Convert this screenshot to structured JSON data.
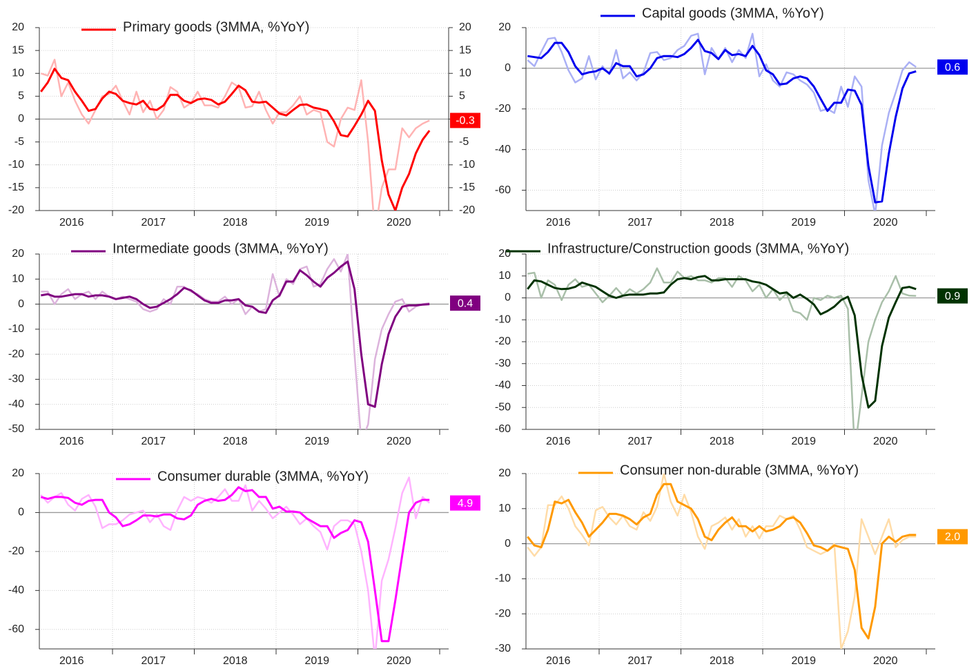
{
  "chart_data": [
    {
      "type": "line",
      "categories": [
        null,
        null,
        null,
        null,
        null,
        "2016",
        null,
        null,
        null,
        null,
        null,
        null,
        null,
        null,
        null,
        null,
        null,
        "2017",
        null,
        null,
        null,
        null,
        null,
        null,
        null,
        null,
        null,
        null,
        null,
        "2018",
        null,
        null,
        null,
        null,
        null,
        null,
        null,
        null,
        null,
        null,
        null,
        "2019",
        null,
        null,
        null,
        null,
        null,
        null,
        null,
        null,
        null,
        null,
        null,
        "2020",
        null,
        null,
        null,
        null
      ],
      "series": [
        {
          "color": "#ffb3b3",
          "values": [
            10,
            9.5,
            13,
            5,
            8,
            4,
            1,
            -1,
            2,
            5,
            5.5,
            7.3,
            4,
            1,
            6,
            1.5,
            4,
            0,
            2,
            7,
            6,
            2.5,
            3.5,
            6,
            3,
            3,
            2.5,
            5,
            8,
            7,
            2.5,
            2.8,
            6,
            2,
            -1,
            1.5,
            1.5,
            3,
            5,
            1,
            2,
            1.5,
            -5,
            -6,
            0,
            2.5,
            2,
            8.5,
            -5,
            -25,
            -15,
            -11,
            -11,
            -2,
            -4,
            -2,
            -1,
            -0.3
          ]
        },
        {
          "name": "Primary goods (3MMA, %YoY)",
          "color": "#ff0000",
          "values": [
            6,
            8,
            11,
            9,
            8.5,
            6,
            4,
            1.8,
            2.2,
            4.5,
            6,
            5.5,
            4,
            3.5,
            3.2,
            4,
            2.2,
            2,
            3,
            5.3,
            5.3,
            4,
            3.5,
            4.3,
            4.5,
            4.2,
            3.2,
            3.8,
            5.5,
            7.3,
            6.3,
            3.8,
            3.6,
            3.8,
            2.5,
            1.2,
            0.8,
            2,
            3.1,
            3.2,
            2.5,
            2.2,
            1.8,
            -0.5,
            -3.5,
            -3.8,
            -1.5,
            1,
            4,
            1.8,
            -9,
            -16.5,
            -20,
            -15,
            -12,
            -7.5,
            -4.5,
            -2.5
          ]
        }
      ],
      "end_label": -0.3,
      "ylim": [
        -20,
        20
      ],
      "yticks": [
        20,
        15,
        10,
        5,
        0,
        -5,
        -10,
        -15,
        -20
      ],
      "y2lim": [
        -20,
        20
      ],
      "y2ticks": [
        20,
        15,
        10,
        5,
        0,
        -5,
        -10,
        -15,
        -20
      ],
      "grid": true
    },
    {
      "type": "line",
      "categories": [
        null,
        null,
        null,
        null,
        null,
        "2016",
        null,
        null,
        null,
        null,
        null,
        null,
        null,
        null,
        null,
        null,
        null,
        "2017",
        null,
        null,
        null,
        null,
        null,
        null,
        null,
        null,
        null,
        null,
        null,
        "2018",
        null,
        null,
        null,
        null,
        null,
        null,
        null,
        null,
        null,
        null,
        null,
        "2019",
        null,
        null,
        null,
        null,
        null,
        null,
        null,
        null,
        null,
        null,
        null,
        "2020",
        null,
        null,
        null,
        null
      ],
      "series": [
        {
          "color": "#aab0f5",
          "values": [
            4,
            1,
            8,
            14.5,
            15,
            8,
            -1,
            -7,
            -5,
            6,
            -5.5,
            1,
            -3,
            9,
            -5,
            -2,
            -6,
            -2,
            7.5,
            8,
            4,
            5,
            9,
            11,
            16,
            17,
            -3,
            10,
            4.5,
            10,
            3,
            9,
            5,
            17,
            -4,
            2,
            -6,
            -9,
            -2,
            -3,
            -6,
            -8,
            -12,
            -21,
            -20,
            -22,
            -9,
            -19,
            -4,
            -9,
            -55,
            -72,
            -38,
            -22,
            -12,
            -1,
            3,
            0.6
          ]
        },
        {
          "name": "Capital goods (3MMA, %YoY)",
          "color": "#0000ee",
          "values": [
            6,
            5.5,
            5,
            8,
            12.5,
            12.5,
            8,
            1,
            -3,
            -2,
            -1.5,
            0,
            -2.5,
            2.5,
            1,
            1,
            -4,
            -3,
            0,
            5,
            6,
            6,
            5.5,
            7,
            10,
            14,
            8.5,
            7.5,
            4.5,
            9,
            6.5,
            7,
            6,
            11,
            6.5,
            -1,
            -3,
            -8,
            -7.5,
            -5,
            -4,
            -5,
            -9,
            -15,
            -21,
            -17,
            -17,
            -10.5,
            -11,
            -18,
            -48,
            -66,
            -65.5,
            -42,
            -24,
            -10,
            -2.5,
            -1.5
          ]
        }
      ],
      "end_label": 0.6,
      "ylim": [
        -70,
        20
      ],
      "yticks": [
        20,
        0,
        -20,
        -40,
        -60
      ],
      "grid": true
    },
    {
      "type": "line",
      "categories": [
        null,
        null,
        null,
        null,
        null,
        "2016",
        null,
        null,
        null,
        null,
        null,
        null,
        null,
        null,
        null,
        null,
        null,
        "2017",
        null,
        null,
        null,
        null,
        null,
        null,
        null,
        null,
        null,
        null,
        null,
        "2018",
        null,
        null,
        null,
        null,
        null,
        null,
        null,
        null,
        null,
        null,
        null,
        "2019",
        null,
        null,
        null,
        null,
        null,
        null,
        null,
        null,
        null,
        null,
        null,
        "2020",
        null,
        null,
        null,
        null
      ],
      "series": [
        {
          "color": "#dcb3dc",
          "values": [
            5,
            5,
            0,
            4,
            6,
            2,
            4,
            5,
            2,
            5,
            3,
            2,
            3,
            2,
            1,
            -2,
            -3,
            -2,
            2,
            0,
            7,
            7,
            5,
            4,
            2,
            1,
            1,
            3,
            0,
            2,
            -4,
            -1,
            -3,
            -2,
            12,
            3,
            10,
            8,
            14,
            15,
            7,
            8,
            14,
            18,
            13,
            20,
            -20,
            -55,
            -48,
            -22,
            -10,
            -4,
            1,
            2,
            -3,
            -1,
            0,
            0.4
          ]
        },
        {
          "name": "Intermediate goods (3MMA, %YoY)",
          "color": "#800080",
          "values": [
            3.5,
            4,
            3,
            3,
            3.5,
            4,
            4,
            3,
            3.5,
            3.5,
            3,
            2,
            2.5,
            3,
            2,
            0,
            -1.5,
            -1,
            0.5,
            2,
            4,
            6.5,
            5.5,
            3.5,
            1.5,
            0.5,
            0.5,
            1.5,
            1.5,
            2,
            -0.5,
            -1,
            -3,
            -3.5,
            1.5,
            3.5,
            9,
            9,
            13.5,
            11.5,
            9,
            7,
            10.5,
            12.5,
            15,
            17,
            6,
            -20,
            -40,
            -41,
            -24,
            -12,
            -5,
            -1,
            -0.5,
            -0.5,
            -0.2,
            0
          ]
        }
      ],
      "end_label": 0.4,
      "ylim": [
        -50,
        20
      ],
      "yticks": [
        20,
        10,
        0,
        -10,
        -20,
        -30,
        -40,
        -50
      ],
      "grid": true
    },
    {
      "type": "line",
      "categories": [
        null,
        null,
        null,
        null,
        null,
        "2016",
        null,
        null,
        null,
        null,
        null,
        null,
        null,
        null,
        null,
        null,
        null,
        "2017",
        null,
        null,
        null,
        null,
        null,
        null,
        null,
        null,
        null,
        null,
        null,
        "2018",
        null,
        null,
        null,
        null,
        null,
        null,
        null,
        null,
        null,
        null,
        null,
        "2019",
        null,
        null,
        null,
        null,
        null,
        null,
        null,
        null,
        null,
        null,
        null,
        "2020",
        null,
        null,
        null,
        null
      ],
      "series": [
        {
          "color": "#a9bfa9",
          "values": [
            11,
            11.5,
            0,
            8,
            6,
            -1,
            6,
            8.5,
            5,
            6,
            2,
            -2,
            1,
            4.5,
            1,
            4,
            2,
            4,
            7,
            13.5,
            7,
            7,
            12,
            9,
            10,
            8,
            8,
            7,
            9,
            9,
            5,
            10,
            8,
            3,
            6,
            0,
            4,
            -1,
            2,
            -6,
            -7,
            -10,
            0,
            -1,
            1,
            0,
            1,
            -5,
            -70,
            -45,
            -20,
            -10,
            -2,
            3,
            10,
            2,
            1,
            0.9
          ]
        },
        {
          "name": "Infrastructure/Construction goods (3MMA, %YoY)",
          "color": "#003300",
          "values": [
            4,
            8,
            7.5,
            6,
            4.5,
            4,
            4.2,
            5,
            7,
            6,
            5,
            3,
            1,
            0,
            1,
            1.5,
            1.5,
            1.5,
            2,
            2,
            2.5,
            6,
            8.5,
            9,
            8.5,
            9.5,
            10,
            8,
            8,
            8.5,
            8.5,
            8.5,
            8.5,
            7.5,
            7,
            6,
            4,
            2,
            2.5,
            0,
            1.5,
            -0.5,
            -3,
            -7.5,
            -6,
            -4,
            -1,
            0.5,
            -8,
            -35,
            -50,
            -47,
            -22,
            -9,
            -2,
            4.5,
            5,
            4
          ]
        }
      ],
      "end_label": 0.9,
      "ylim": [
        -60,
        20
      ],
      "yticks": [
        20,
        10,
        0,
        -10,
        -20,
        -30,
        -40,
        -50,
        -60
      ],
      "grid": true
    },
    {
      "type": "line",
      "categories": [
        null,
        null,
        null,
        null,
        null,
        "2016",
        null,
        null,
        null,
        null,
        null,
        null,
        null,
        null,
        null,
        null,
        null,
        "2017",
        null,
        null,
        null,
        null,
        null,
        null,
        null,
        null,
        null,
        null,
        null,
        "2018",
        null,
        null,
        null,
        null,
        null,
        null,
        null,
        null,
        null,
        null,
        null,
        "2019",
        null,
        null,
        null,
        null,
        null,
        null,
        null,
        null,
        null,
        null,
        null,
        "2020",
        null,
        null,
        null,
        null
      ],
      "series": [
        {
          "color": "#ffb3ff",
          "values": [
            9,
            5,
            8,
            10,
            4,
            1,
            7,
            9,
            3,
            -8,
            -6,
            -6,
            -4,
            -1,
            0,
            1,
            -5,
            -1,
            -7,
            -9,
            1,
            8,
            6,
            8,
            7,
            5,
            8,
            12,
            6,
            6,
            14,
            1,
            6,
            2,
            -3,
            0,
            3,
            -1,
            -6,
            -3,
            -7,
            -10,
            -19,
            -7,
            -4,
            -4,
            -6,
            -20,
            -40,
            -75,
            -35,
            -24,
            -8,
            10,
            18,
            -3,
            8,
            4.9
          ]
        },
        {
          "name": "Consumer durable (3MMA, %YoY)",
          "color": "#ff00ff",
          "values": [
            8,
            7,
            8,
            8,
            7.5,
            5,
            4,
            6,
            6.5,
            6.5,
            0,
            -2.5,
            -7,
            -6,
            -4,
            -1.5,
            -1.5,
            -2,
            -1,
            -1,
            -3,
            -3.5,
            -1.5,
            4,
            6,
            7,
            6,
            6.5,
            9,
            13,
            11,
            11.5,
            8,
            8,
            2,
            3,
            0.5,
            0.5,
            0,
            -3,
            -5,
            -7,
            -7,
            -13,
            -10.5,
            -9,
            -4,
            -5,
            -15,
            -40,
            -66,
            -66,
            -45,
            -22,
            0,
            5,
            6.5,
            6.5
          ]
        }
      ],
      "end_label": 4.9,
      "ylim": [
        -70,
        20
      ],
      "yticks": [
        20,
        0,
        -20,
        -40,
        -60
      ],
      "grid": true
    },
    {
      "type": "line",
      "categories": [
        null,
        null,
        null,
        null,
        null,
        "2016",
        null,
        null,
        null,
        null,
        null,
        null,
        null,
        null,
        null,
        null,
        null,
        "2017",
        null,
        null,
        null,
        null,
        null,
        null,
        null,
        null,
        null,
        null,
        null,
        "2018",
        null,
        null,
        null,
        null,
        null,
        null,
        null,
        null,
        null,
        null,
        null,
        "2019",
        null,
        null,
        null,
        null,
        null,
        null,
        null,
        null,
        null,
        null,
        null,
        "2020",
        null,
        null,
        null,
        null
      ],
      "series": [
        {
          "color": "#ffdca8",
          "values": [
            -1,
            -3.5,
            -1,
            11,
            11,
            13.5,
            10,
            5,
            2.5,
            -0.5,
            9.5,
            10.5,
            7.5,
            5.5,
            8,
            5,
            4,
            9,
            6.5,
            10.5,
            20,
            12,
            8,
            14,
            9,
            2,
            -1.5,
            5,
            6,
            7.5,
            4,
            7,
            2,
            5,
            1.5,
            5,
            5,
            8,
            7,
            8,
            4,
            -1,
            -2,
            -3,
            -2,
            0,
            -30,
            -25,
            -15,
            7,
            2,
            -3,
            2,
            7,
            -1,
            1,
            2,
            2
          ]
        },
        {
          "name": "Consumer non-durable (3MMA, %YoY)",
          "color": "#ff9900",
          "values": [
            2,
            -0.5,
            -1,
            4,
            12,
            11.5,
            12.5,
            9,
            6,
            2,
            4,
            6,
            8.5,
            8.5,
            8,
            7,
            5.5,
            7.5,
            8.5,
            14,
            17,
            17,
            12,
            11,
            10,
            7,
            2,
            1,
            4,
            6,
            7.5,
            5,
            5,
            3.5,
            5,
            3.5,
            4,
            5,
            7,
            7.5,
            6,
            3,
            -0.5,
            -1,
            -2,
            -0.5,
            -1,
            -1.5,
            -7.5,
            -24,
            -27,
            -18,
            0,
            2,
            0.5,
            2,
            2.5,
            2.5
          ]
        }
      ],
      "end_label": {
        "value": 2,
        "label": "2.0"
      },
      "ylim": [
        -30,
        20
      ],
      "yticks": [
        20,
        10,
        0,
        -10,
        -20,
        -30
      ],
      "grid": true
    }
  ]
}
